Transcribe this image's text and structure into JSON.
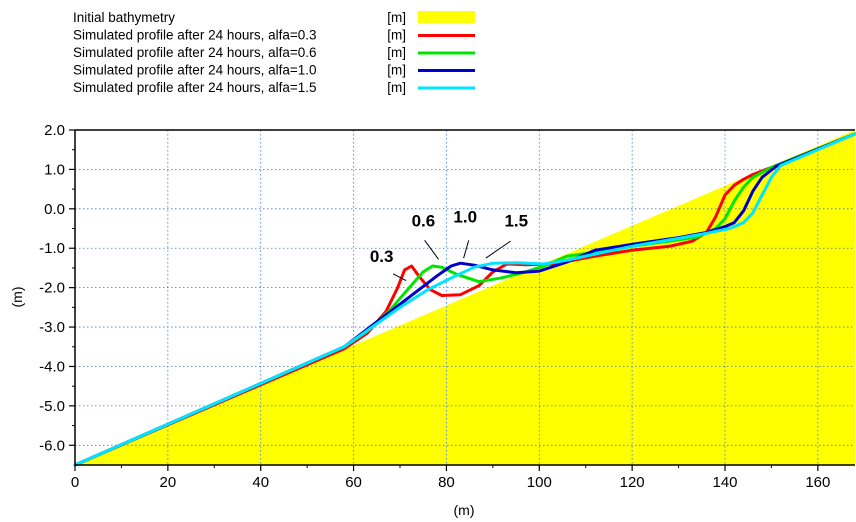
{
  "chart_data": {
    "type": "area",
    "title": "",
    "xlabel": "(m)",
    "ylabel": "(m)",
    "xlim": [
      0,
      168
    ],
    "ylim": [
      -6.5,
      2.0
    ],
    "x_ticks": [
      0,
      20,
      40,
      60,
      80,
      100,
      120,
      140,
      160
    ],
    "y_ticks": [
      2.0,
      1.0,
      0.0,
      -1.0,
      -2.0,
      -3.0,
      -4.0,
      -5.0,
      -6.0
    ],
    "x_tick_labels": [
      "0",
      "20",
      "40",
      "60",
      "80",
      "100",
      "120",
      "140",
      "160"
    ],
    "y_tick_labels": [
      "2.0",
      "1.0",
      "0.0",
      "-1.0",
      "-2.0",
      "-3.0",
      "-4.0",
      "-5.0",
      "-6.0"
    ],
    "grid": true,
    "legend_position": "top-left",
    "series": [
      {
        "name": "Initial bathymetry",
        "unit": "[m]",
        "color": "#ffff00",
        "style": "fill",
        "points": [
          [
            0,
            -6.5
          ],
          [
            168,
            2.0
          ]
        ]
      },
      {
        "name": "Simulated profile after 24 hours, alfa=0.3",
        "unit": "[m]",
        "color": "#ff0000",
        "style": "line",
        "points": [
          [
            0,
            -6.5
          ],
          [
            58,
            -3.55
          ],
          [
            63,
            -3.15
          ],
          [
            67,
            -2.6
          ],
          [
            69.5,
            -2.0
          ],
          [
            71,
            -1.55
          ],
          [
            72.5,
            -1.45
          ],
          [
            74,
            -1.7
          ],
          [
            76.5,
            -2.05
          ],
          [
            79,
            -2.2
          ],
          [
            83,
            -2.18
          ],
          [
            87,
            -1.95
          ],
          [
            90,
            -1.6
          ],
          [
            93,
            -1.4
          ],
          [
            97,
            -1.42
          ],
          [
            103,
            -1.4
          ],
          [
            112,
            -1.2
          ],
          [
            120,
            -1.05
          ],
          [
            128,
            -0.95
          ],
          [
            133,
            -0.82
          ],
          [
            136,
            -0.6
          ],
          [
            138,
            -0.2
          ],
          [
            140,
            0.35
          ],
          [
            142,
            0.6
          ],
          [
            144,
            0.75
          ],
          [
            146,
            0.87
          ],
          [
            150,
            1.05
          ],
          [
            168,
            1.9
          ]
        ]
      },
      {
        "name": "Simulated profile after 24 hours, alfa=0.6",
        "unit": "[m]",
        "color": "#00e600",
        "style": "line",
        "points": [
          [
            0,
            -6.5
          ],
          [
            58,
            -3.5
          ],
          [
            63,
            -3.1
          ],
          [
            68,
            -2.55
          ],
          [
            72,
            -2.0
          ],
          [
            75,
            -1.6
          ],
          [
            77,
            -1.45
          ],
          [
            79,
            -1.48
          ],
          [
            82,
            -1.65
          ],
          [
            87,
            -1.85
          ],
          [
            92,
            -1.75
          ],
          [
            97,
            -1.6
          ],
          [
            101,
            -1.45
          ],
          [
            106,
            -1.2
          ],
          [
            112,
            -1.1
          ],
          [
            120,
            -0.95
          ],
          [
            128,
            -0.82
          ],
          [
            134,
            -0.72
          ],
          [
            138,
            -0.5
          ],
          [
            140,
            -0.25
          ],
          [
            142,
            0.2
          ],
          [
            144,
            0.55
          ],
          [
            146,
            0.8
          ],
          [
            150,
            1.05
          ],
          [
            168,
            1.9
          ]
        ]
      },
      {
        "name": "Simulated profile after 24 hours, alfa=1.0",
        "unit": "[m]",
        "color": "#0000cc",
        "style": "line",
        "points": [
          [
            0,
            -6.5
          ],
          [
            58,
            -3.5
          ],
          [
            63,
            -3.05
          ],
          [
            68,
            -2.6
          ],
          [
            73,
            -2.15
          ],
          [
            78,
            -1.7
          ],
          [
            81,
            -1.45
          ],
          [
            83,
            -1.38
          ],
          [
            86,
            -1.43
          ],
          [
            90,
            -1.55
          ],
          [
            95,
            -1.62
          ],
          [
            100,
            -1.58
          ],
          [
            106,
            -1.35
          ],
          [
            112,
            -1.05
          ],
          [
            120,
            -0.9
          ],
          [
            130,
            -0.73
          ],
          [
            136,
            -0.6
          ],
          [
            140,
            -0.45
          ],
          [
            142,
            -0.35
          ],
          [
            144,
            -0.05
          ],
          [
            146,
            0.45
          ],
          [
            148,
            0.8
          ],
          [
            151,
            1.08
          ],
          [
            168,
            1.9
          ]
        ]
      },
      {
        "name": "Simulated profile after 24 hours, alfa=1.5",
        "unit": "[m]",
        "color": "#00e5ff",
        "style": "line",
        "points": [
          [
            0,
            -6.5
          ],
          [
            58,
            -3.5
          ],
          [
            64,
            -3.0
          ],
          [
            70,
            -2.5
          ],
          [
            76,
            -2.05
          ],
          [
            82,
            -1.7
          ],
          [
            86,
            -1.48
          ],
          [
            90,
            -1.38
          ],
          [
            95,
            -1.37
          ],
          [
            101,
            -1.4
          ],
          [
            106,
            -1.3
          ],
          [
            112,
            -1.15
          ],
          [
            120,
            -0.95
          ],
          [
            130,
            -0.75
          ],
          [
            136,
            -0.62
          ],
          [
            141,
            -0.5
          ],
          [
            144,
            -0.35
          ],
          [
            146,
            -0.1
          ],
          [
            148,
            0.35
          ],
          [
            150,
            0.8
          ],
          [
            152,
            1.1
          ],
          [
            168,
            1.9
          ]
        ]
      }
    ],
    "annotations": [
      {
        "text": "0.3",
        "x": 63.5,
        "y": -1.35,
        "pointer": [
          [
            68.5,
            -1.65
          ],
          [
            71.3,
            -1.82
          ]
        ]
      },
      {
        "text": "0.6",
        "x": 72.5,
        "y": -0.45,
        "pointer": [
          [
            75.3,
            -0.8
          ],
          [
            78.3,
            -1.28
          ]
        ]
      },
      {
        "text": "1.0",
        "x": 81.5,
        "y": -0.35,
        "pointer": [
          [
            84.8,
            -0.8
          ],
          [
            83.7,
            -1.25
          ]
        ]
      },
      {
        "text": "1.5",
        "x": 92.5,
        "y": -0.45,
        "pointer": [
          [
            93.8,
            -0.82
          ],
          [
            88.5,
            -1.25
          ]
        ]
      }
    ]
  }
}
